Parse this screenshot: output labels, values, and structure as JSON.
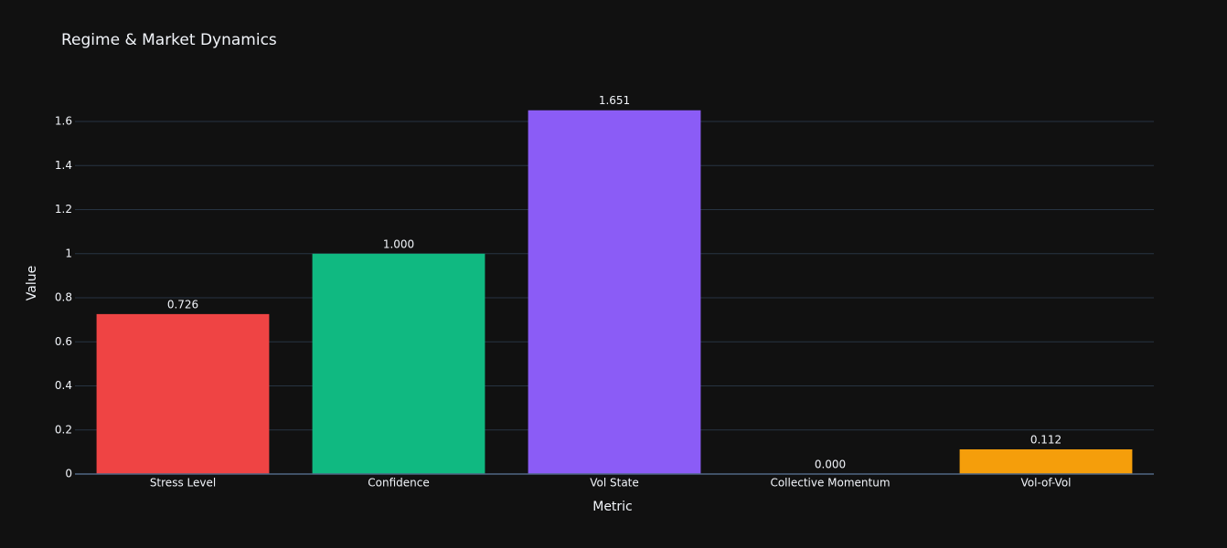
{
  "chart_data": {
    "type": "bar",
    "title": "Regime & Market Dynamics",
    "x_label": "Metric",
    "y_label": "Value",
    "categories": [
      "Stress Level",
      "Confidence",
      "Vol State",
      "Collective Momentum",
      "Vol-of-Vol"
    ],
    "values": [
      0.726,
      1.0,
      1.651,
      0.0,
      0.112
    ],
    "value_labels": [
      "0.726",
      "1.000",
      "1.651",
      "0.000",
      "0.112"
    ],
    "colors": [
      "#ef4444",
      "#10b981",
      "#8b5cf6",
      "#06b6d4",
      "#f59e0b"
    ],
    "ylim": [
      0,
      1.737
    ],
    "yticks": [
      0,
      0.2,
      0.4,
      0.6,
      0.8,
      1,
      1.2,
      1.4,
      1.6
    ],
    "grid": true
  }
}
